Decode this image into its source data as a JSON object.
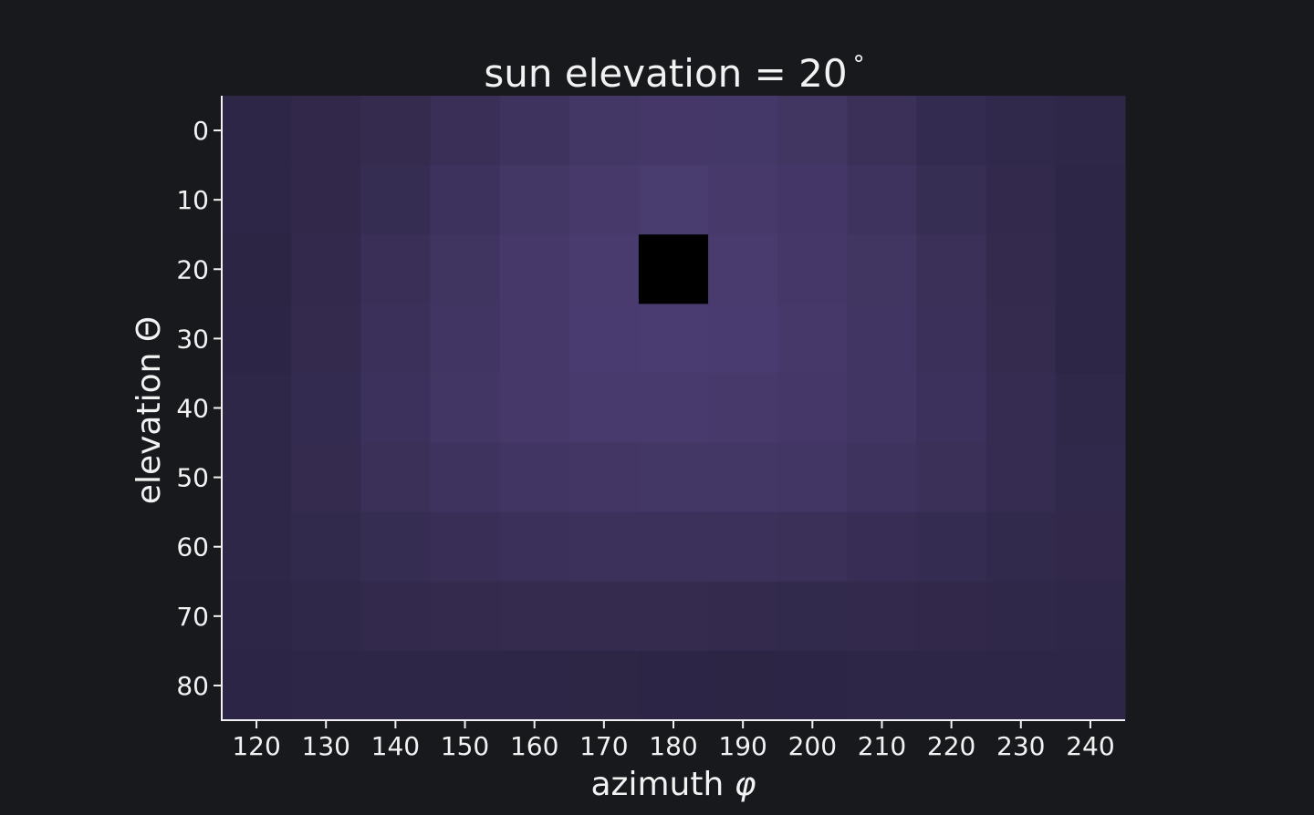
{
  "chart_data": {
    "type": "heatmap",
    "title": "sun elevation = 20",
    "title_degree_symbol": "°",
    "xlabel_text": "azimuth",
    "xlabel_symbol": "φ",
    "ylabel_text": "elevation",
    "ylabel_symbol": "Θ",
    "x": [
      120,
      130,
      140,
      150,
      160,
      170,
      180,
      190,
      200,
      210,
      220,
      230,
      240
    ],
    "y": [
      0,
      10,
      20,
      30,
      40,
      50,
      60,
      70,
      80
    ],
    "x_ticks": [
      120,
      130,
      140,
      150,
      160,
      170,
      180,
      190,
      200,
      210,
      220,
      230,
      240
    ],
    "y_ticks": [
      0,
      10,
      20,
      30,
      40,
      50,
      60,
      70,
      80
    ],
    "xlim": [
      115,
      245
    ],
    "ylim": [
      85,
      -5
    ],
    "grid": false,
    "colormap": [
      "#2b2442",
      "#4a3c70"
    ],
    "value_range": [
      0,
      1
    ],
    "masked_cells": [
      {
        "x": 180,
        "y": 20
      }
    ],
    "masked_color": "#000000",
    "values": [
      [
        0.1,
        0.18,
        0.28,
        0.45,
        0.62,
        0.78,
        0.85,
        0.82,
        0.7,
        0.48,
        0.3,
        0.2,
        0.12
      ],
      [
        0.08,
        0.18,
        0.36,
        0.58,
        0.78,
        0.9,
        0.98,
        0.9,
        0.8,
        0.6,
        0.4,
        0.22,
        0.1
      ],
      [
        0.05,
        0.22,
        0.45,
        0.68,
        0.86,
        0.96,
        null,
        0.96,
        0.85,
        0.7,
        0.48,
        0.25,
        0.08
      ],
      [
        0.06,
        0.26,
        0.52,
        0.72,
        0.88,
        0.97,
        1.0,
        0.97,
        0.88,
        0.72,
        0.52,
        0.28,
        0.08
      ],
      [
        0.12,
        0.3,
        0.56,
        0.75,
        0.86,
        0.92,
        0.92,
        0.9,
        0.84,
        0.72,
        0.56,
        0.34,
        0.15
      ],
      [
        0.14,
        0.28,
        0.48,
        0.62,
        0.72,
        0.76,
        0.78,
        0.78,
        0.74,
        0.62,
        0.48,
        0.34,
        0.2
      ],
      [
        0.12,
        0.24,
        0.36,
        0.44,
        0.5,
        0.55,
        0.55,
        0.54,
        0.48,
        0.42,
        0.32,
        0.24,
        0.18
      ],
      [
        0.1,
        0.16,
        0.22,
        0.26,
        0.28,
        0.28,
        0.28,
        0.26,
        0.24,
        0.22,
        0.18,
        0.16,
        0.14
      ],
      [
        0.06,
        0.08,
        0.1,
        0.1,
        0.08,
        0.07,
        0.06,
        0.05,
        0.06,
        0.08,
        0.08,
        0.09,
        0.1
      ]
    ]
  }
}
